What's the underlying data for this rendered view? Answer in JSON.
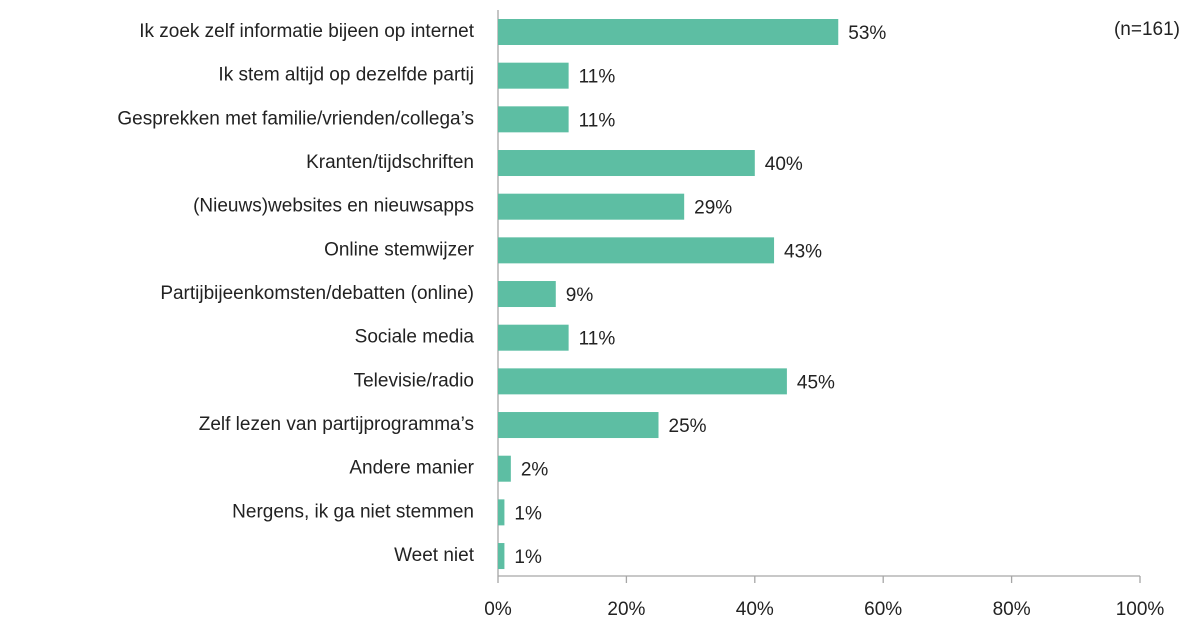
{
  "chart_data": {
    "type": "bar",
    "orientation": "horizontal",
    "annotation": "(n=161)",
    "categories": [
      "Ik zoek zelf informatie bijeen op internet",
      "Ik stem altijd op dezelfde partij",
      "Gesprekken met familie/vrienden/collega’s",
      "Kranten/tijdschriften",
      "(Nieuws)websites en nieuwsapps",
      "Online stemwijzer",
      "Partijbijeenkomsten/debatten (online)",
      "Sociale media",
      "Televisie/radio",
      "Zelf lezen van partijprogramma’s",
      "Andere manier",
      "Nergens, ik ga niet stemmen",
      "Weet niet"
    ],
    "values": [
      53,
      11,
      11,
      40,
      29,
      43,
      9,
      11,
      45,
      25,
      2,
      1,
      1
    ],
    "value_labels": [
      "53%",
      "11%",
      "11%",
      "40%",
      "29%",
      "43%",
      "9%",
      "11%",
      "45%",
      "25%",
      "2%",
      "1%",
      "1%"
    ],
    "color": "#5dbea3",
    "xlim": [
      0,
      100
    ],
    "xticks": [
      {
        "value": 0,
        "label": "0%"
      },
      {
        "value": 20,
        "label": "20%"
      },
      {
        "value": 40,
        "label": "40%"
      },
      {
        "value": 60,
        "label": "60%"
      },
      {
        "value": 80,
        "label": "80%"
      },
      {
        "value": 100,
        "label": "100%"
      }
    ],
    "grid": false
  }
}
